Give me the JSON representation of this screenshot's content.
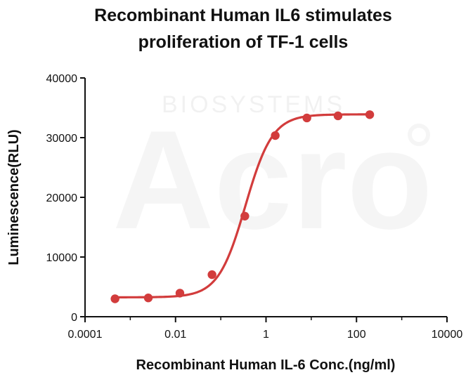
{
  "watermark": {
    "logo_text": "Acro",
    "sub_text": "BIOSYSTEMS"
  },
  "chart_data": {
    "type": "scatter",
    "title_lines": [
      "Recombinant Human IL6 stimulates",
      "proliferation of TF-1 cells"
    ],
    "xlabel": "Recombinant Human IL-6 Conc.(ng/ml)",
    "ylabel": "Luminescence(RLU)",
    "x_scale": "log",
    "xlim": [
      0.0001,
      10000
    ],
    "ylim": [
      0,
      40000
    ],
    "x_ticks": [
      {
        "value": 0.0001,
        "label": "0.0001"
      },
      {
        "value": 0.01,
        "label": "0.01"
      },
      {
        "value": 1,
        "label": "1"
      },
      {
        "value": 100,
        "label": "100"
      },
      {
        "value": 10000,
        "label": "10000"
      }
    ],
    "y_ticks": [
      {
        "value": 0,
        "label": "0"
      },
      {
        "value": 10000,
        "label": "10000"
      },
      {
        "value": 20000,
        "label": "20000"
      },
      {
        "value": 30000,
        "label": "30000"
      },
      {
        "value": 40000,
        "label": "40000"
      }
    ],
    "grid": false,
    "legend": "none",
    "series": [
      {
        "color": "#d23c3c",
        "points": [
          {
            "x": 0.00046,
            "y": 3000
          },
          {
            "x": 0.0025,
            "y": 3150
          },
          {
            "x": 0.0125,
            "y": 3950
          },
          {
            "x": 0.064,
            "y": 7050
          },
          {
            "x": 0.34,
            "y": 16850
          },
          {
            "x": 1.6,
            "y": 30350
          },
          {
            "x": 8,
            "y": 33300
          },
          {
            "x": 39,
            "y": 33650
          },
          {
            "x": 196,
            "y": 33850
          }
        ],
        "fit": {
          "model": "4PL",
          "bottom": 3250,
          "top": 33900,
          "ec50": 0.35,
          "hill": 1.45
        }
      }
    ]
  }
}
